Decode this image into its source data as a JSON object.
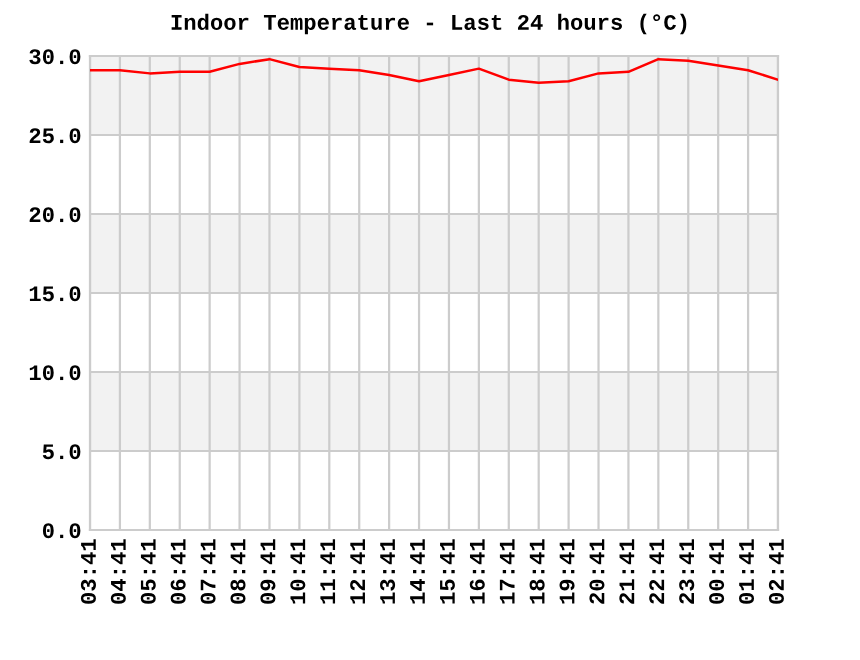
{
  "chart_data": {
    "type": "line",
    "title": "Indoor Temperature - Last 24 hours (°C)",
    "categories": [
      "03:41",
      "04:41",
      "05:41",
      "06:41",
      "07:41",
      "08:41",
      "09:41",
      "10:41",
      "11:41",
      "12:41",
      "13:41",
      "14:41",
      "15:41",
      "16:41",
      "17:41",
      "18:41",
      "19:41",
      "20:41",
      "21:41",
      "22:41",
      "23:41",
      "00:41",
      "01:41",
      "02:41"
    ],
    "series": [
      {
        "color": "#ff0000",
        "values": [
          29.1,
          29.1,
          28.9,
          29.0,
          29.0,
          29.5,
          29.8,
          29.3,
          29.2,
          29.1,
          28.8,
          28.4,
          28.8,
          29.2,
          28.5,
          28.3,
          28.4,
          28.9,
          29.0,
          29.8,
          29.7,
          29.4,
          29.1,
          28.5
        ]
      }
    ],
    "ylim": [
      0,
      30
    ],
    "yticks": [
      {
        "value": 0,
        "label": "0.0"
      },
      {
        "value": 5,
        "label": "5.0"
      },
      {
        "value": 10,
        "label": "10.0"
      },
      {
        "value": 15,
        "label": "15.0"
      },
      {
        "value": 20,
        "label": "20.0"
      },
      {
        "value": 25,
        "label": "25.0"
      },
      {
        "value": 30,
        "label": "30.0"
      }
    ],
    "bands": [
      {
        "axis": "y",
        "from": 5,
        "to": 10,
        "color": "#f2f2f2"
      },
      {
        "axis": "y",
        "from": 15,
        "to": 20,
        "color": "#f2f2f2"
      },
      {
        "axis": "y",
        "from": 25,
        "to": 30,
        "color": "#f2f2f2"
      }
    ],
    "grid": true,
    "marker": "none",
    "line_style": "solid"
  }
}
